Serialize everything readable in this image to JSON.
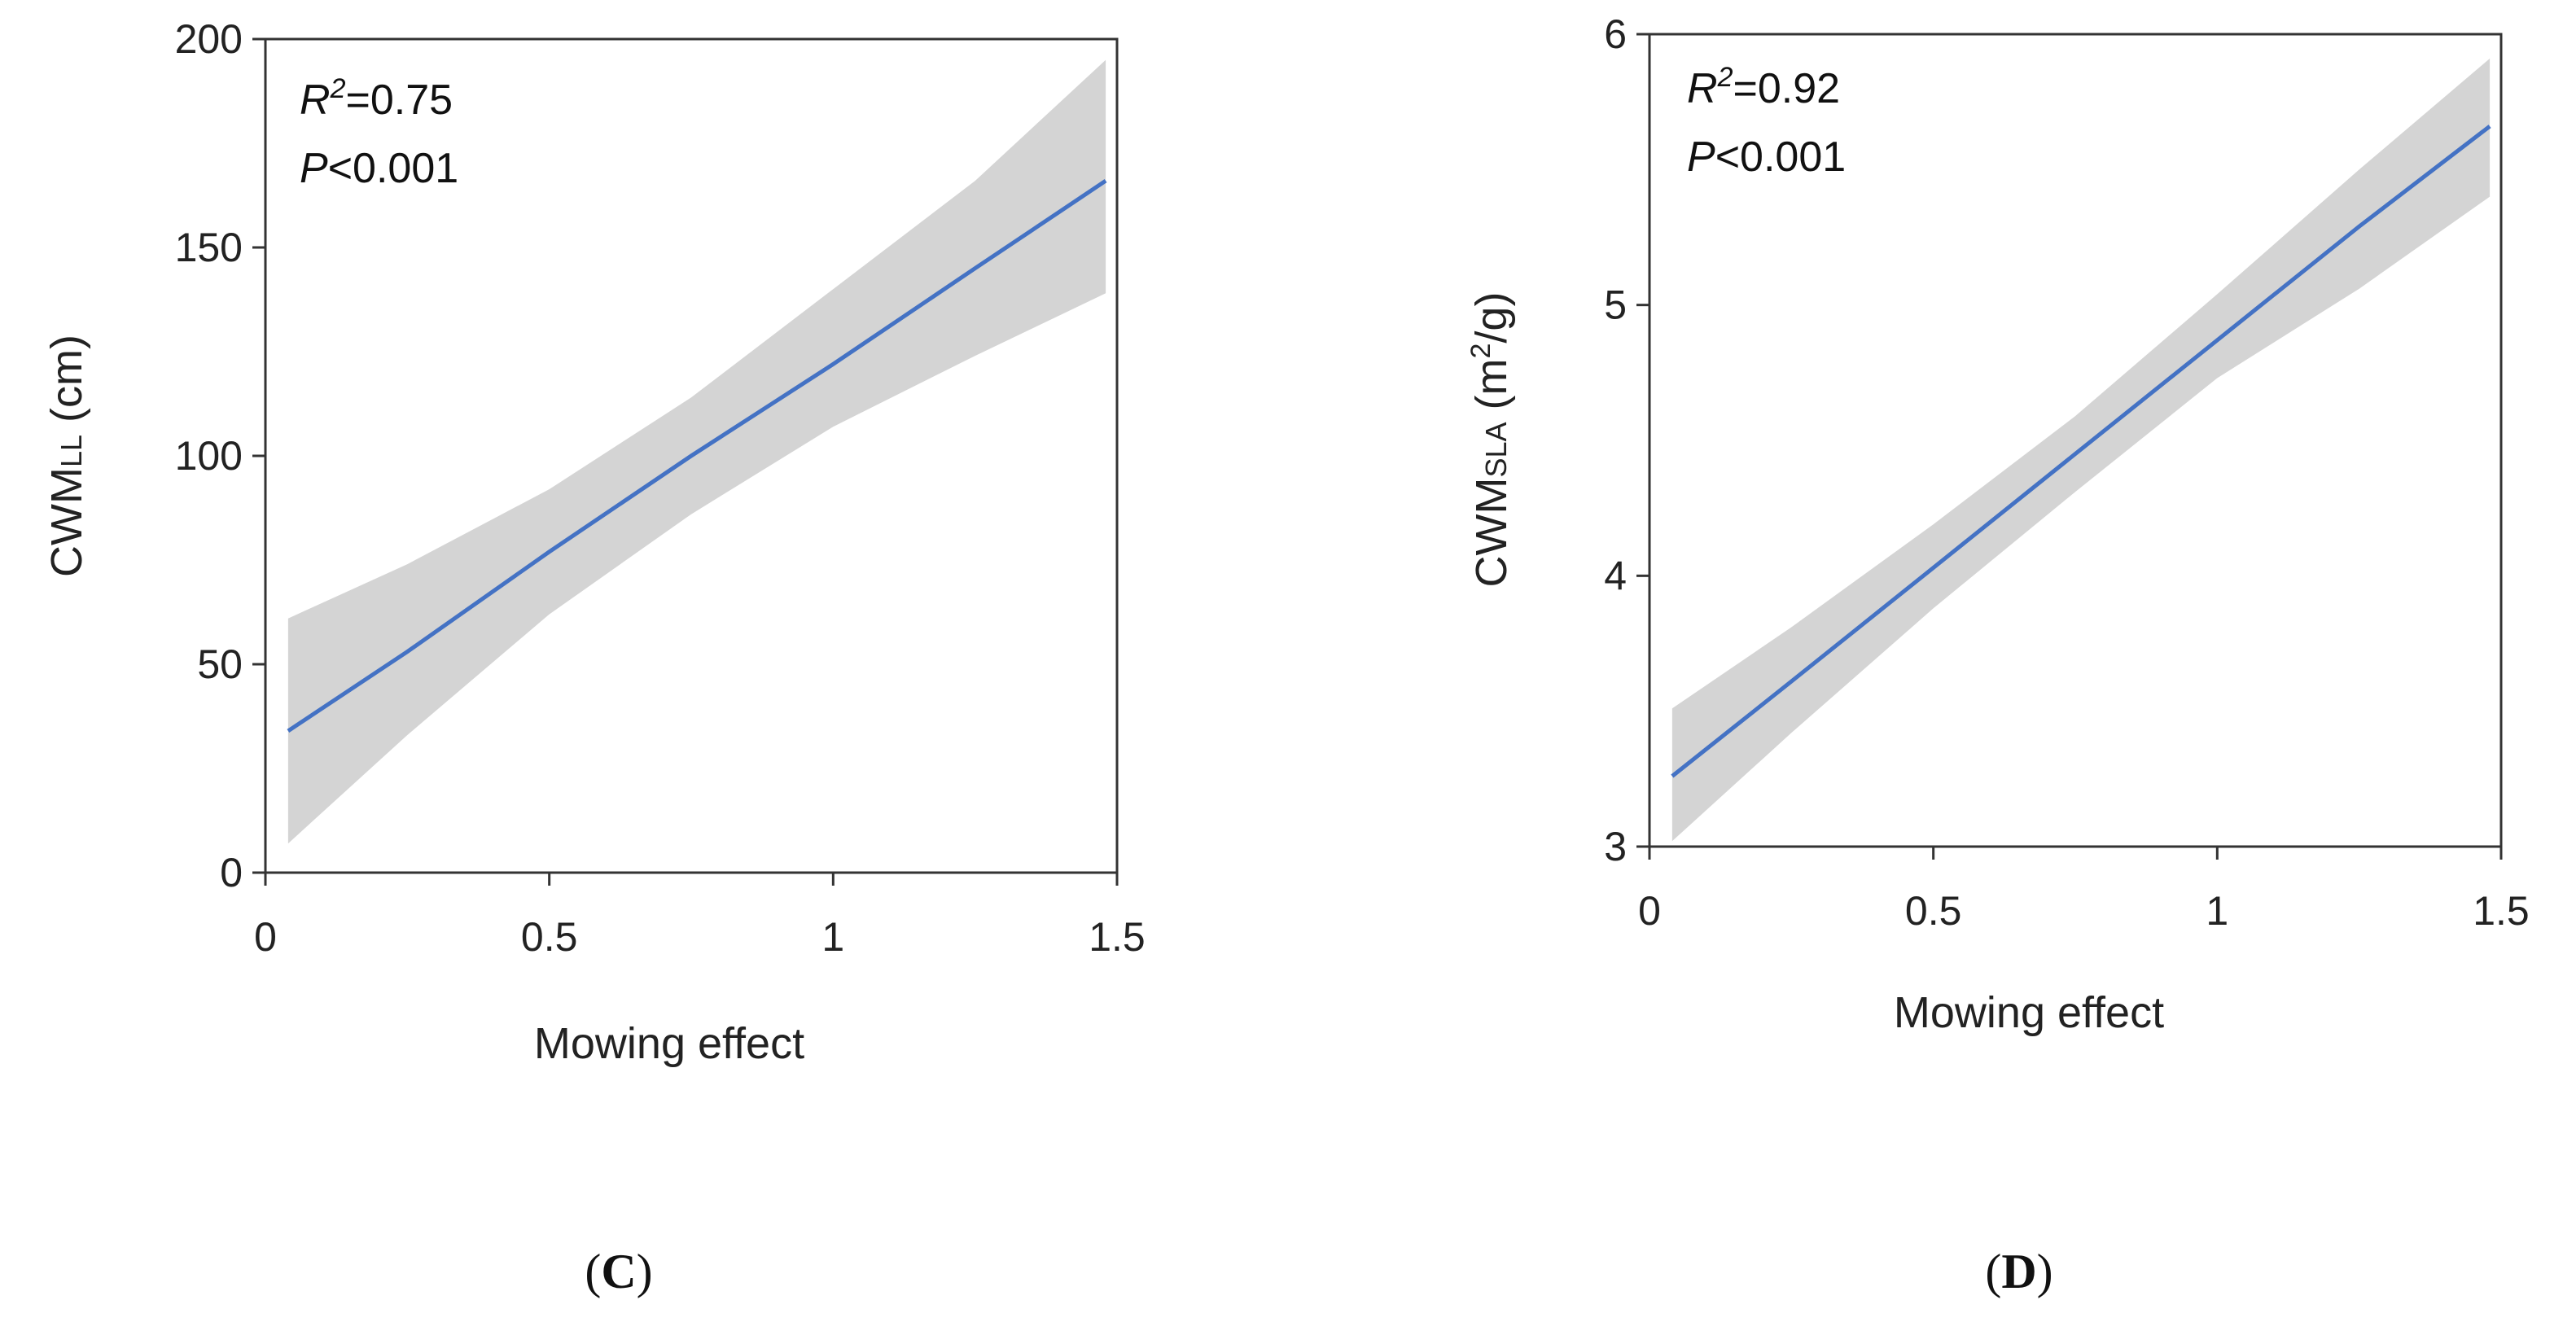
{
  "chart_data": [
    {
      "type": "line",
      "panel_label": "C",
      "xlabel": "Mowing effect",
      "ylabel": "CWM",
      "ylabel_sub": "LL",
      "ylabel_unit": " (cm)",
      "xlim": [
        0,
        1.5
      ],
      "ylim": [
        0,
        200
      ],
      "xticks": [
        0,
        0.5,
        1,
        1.5
      ],
      "xtick_labels": [
        "0",
        "0.5",
        "1",
        "1.5"
      ],
      "yticks": [
        0,
        50,
        100,
        150,
        200
      ],
      "ytick_labels": [
        "0",
        "50",
        "100",
        "150",
        "200"
      ],
      "stats": {
        "r2_label": "R",
        "r2_sup": "2",
        "r2_value": "=0.75",
        "p_label": "P",
        "p_value": "<0.001"
      },
      "series": [
        {
          "x": [
            0.04,
            0.25,
            0.5,
            0.75,
            1.0,
            1.25,
            1.48
          ],
          "fit": [
            34,
            53,
            77,
            100,
            122,
            145,
            166
          ],
          "lower": [
            7,
            33,
            62,
            86,
            107,
            124,
            139
          ],
          "upper": [
            61,
            74,
            92,
            114,
            140,
            166,
            195
          ]
        }
      ],
      "colors": {
        "line": "#4472c4",
        "band": "#d4d4d4"
      }
    },
    {
      "type": "line",
      "panel_label": "D",
      "xlabel": "Mowing effect",
      "ylabel": "CWM",
      "ylabel_sub": "SLA",
      "ylabel_unit": " (m",
      "ylabel_unit_sup": "2",
      "ylabel_unit_tail": "/g)",
      "xlim": [
        0,
        1.5
      ],
      "ylim": [
        3,
        6
      ],
      "xticks": [
        0,
        0.5,
        1,
        1.5
      ],
      "xtick_labels": [
        "0",
        "0.5",
        "1",
        "1.5"
      ],
      "yticks": [
        3,
        4,
        5,
        6
      ],
      "ytick_labels": [
        "3",
        "4",
        "5",
        "6"
      ],
      "stats": {
        "r2_label": "R",
        "r2_sup": "2",
        "r2_value": "=0.92",
        "p_label": "P",
        "p_value": "<0.001"
      },
      "series": [
        {
          "x": [
            0.04,
            0.25,
            0.5,
            0.75,
            1.0,
            1.25,
            1.48
          ],
          "fit": [
            3.26,
            3.61,
            4.03,
            4.45,
            4.87,
            5.29,
            5.66
          ],
          "lower": [
            3.02,
            3.42,
            3.88,
            4.31,
            4.73,
            5.06,
            5.4
          ],
          "upper": [
            3.51,
            3.81,
            4.19,
            4.59,
            5.04,
            5.5,
            5.91
          ]
        }
      ],
      "colors": {
        "line": "#4472c4",
        "band": "#d4d4d4"
      }
    }
  ]
}
